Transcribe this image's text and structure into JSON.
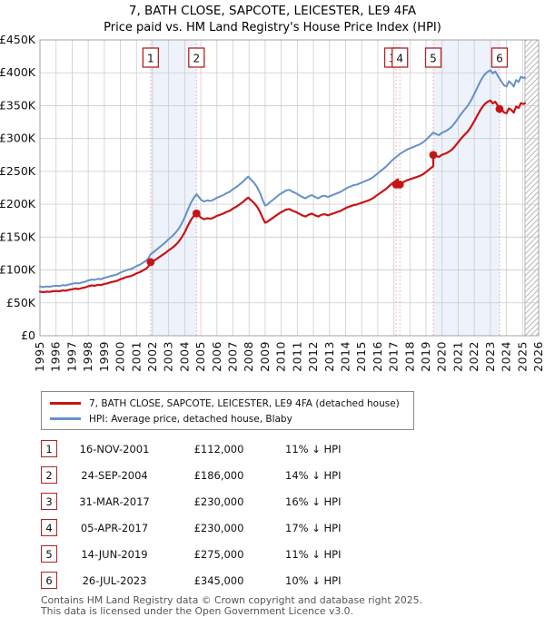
{
  "title": {
    "line1": "7, BATH CLOSE, SAPCOTE, LEICESTER, LE9 4FA",
    "line2": "Price paid vs. HM Land Registry's House Price Index (HPI)"
  },
  "colors": {
    "property_line": "#c81414",
    "hpi_line": "#6590c8",
    "dot": "#c81414",
    "marker_box_border": "#b22222",
    "dashed_line": "#f4a2a2",
    "band_fill": "#edf2fb",
    "grid": "#cccccc",
    "frame": "#a3a3a3",
    "hatch": "#b8b8b8",
    "tick_text": "#111111"
  },
  "legend": {
    "series1": "7, BATH CLOSE, SAPCOTE, LEICESTER, LE9 4FA (detached house)",
    "series2": "HPI: Average price, detached house, Blaby"
  },
  "chart_data": {
    "type": "line",
    "x_min": 1995,
    "x_max": 2026,
    "y_min": 0,
    "y_max": 450,
    "y_tick_step": 50,
    "y_unit": "£",
    "y_unit_suffix": "K",
    "grid": true,
    "legend_position": "below",
    "hatch_from": 2025.15,
    "bands": [
      [
        2001.88,
        2004.73
      ],
      [
        2019.45,
        2023.57
      ]
    ],
    "hpi_series_name": "HPI: Average price, detached house, Blaby",
    "hpi_points": [
      [
        1995.0,
        75
      ],
      [
        1995.2,
        74
      ],
      [
        1995.4,
        75
      ],
      [
        1995.6,
        74.5
      ],
      [
        1995.8,
        75.5
      ],
      [
        1996.0,
        76
      ],
      [
        1996.2,
        75.5
      ],
      [
        1996.4,
        77
      ],
      [
        1996.6,
        76.5
      ],
      [
        1996.8,
        78
      ],
      [
        1997.0,
        79
      ],
      [
        1997.2,
        80
      ],
      [
        1997.4,
        79.5
      ],
      [
        1997.6,
        81
      ],
      [
        1997.8,
        82
      ],
      [
        1998.0,
        84
      ],
      [
        1998.2,
        85.5
      ],
      [
        1998.4,
        85
      ],
      [
        1998.6,
        86.5
      ],
      [
        1998.8,
        86
      ],
      [
        1999.0,
        88
      ],
      [
        1999.2,
        89
      ],
      [
        1999.4,
        91
      ],
      [
        1999.6,
        92
      ],
      [
        1999.8,
        93.5
      ],
      [
        2000.0,
        96
      ],
      [
        2000.2,
        98
      ],
      [
        2000.4,
        100
      ],
      [
        2000.6,
        101
      ],
      [
        2000.8,
        103
      ],
      [
        2001.0,
        106
      ],
      [
        2001.2,
        108
      ],
      [
        2001.4,
        111
      ],
      [
        2001.6,
        114
      ],
      [
        2001.75,
        118
      ],
      [
        2001.88,
        124
      ],
      [
        2002.0,
        126
      ],
      [
        2002.2,
        130
      ],
      [
        2002.4,
        134
      ],
      [
        2002.6,
        138
      ],
      [
        2002.8,
        142
      ],
      [
        2003.0,
        147
      ],
      [
        2003.2,
        151
      ],
      [
        2003.4,
        156
      ],
      [
        2003.6,
        162
      ],
      [
        2003.8,
        170
      ],
      [
        2004.0,
        180
      ],
      [
        2004.2,
        192
      ],
      [
        2004.4,
        203
      ],
      [
        2004.6,
        211
      ],
      [
        2004.73,
        215
      ],
      [
        2004.85,
        212
      ],
      [
        2005.0,
        207
      ],
      [
        2005.2,
        204
      ],
      [
        2005.4,
        206
      ],
      [
        2005.6,
        205
      ],
      [
        2005.8,
        207
      ],
      [
        2006.0,
        210
      ],
      [
        2006.2,
        212
      ],
      [
        2006.4,
        214
      ],
      [
        2006.6,
        217
      ],
      [
        2006.8,
        219
      ],
      [
        2007.0,
        223
      ],
      [
        2007.2,
        226
      ],
      [
        2007.4,
        230
      ],
      [
        2007.6,
        234
      ],
      [
        2007.8,
        239
      ],
      [
        2007.95,
        242
      ],
      [
        2008.1,
        238
      ],
      [
        2008.3,
        233
      ],
      [
        2008.5,
        226
      ],
      [
        2008.7,
        216
      ],
      [
        2008.85,
        206
      ],
      [
        2009.0,
        198
      ],
      [
        2009.15,
        200
      ],
      [
        2009.3,
        203
      ],
      [
        2009.5,
        207
      ],
      [
        2009.7,
        211
      ],
      [
        2009.9,
        215
      ],
      [
        2010.1,
        218
      ],
      [
        2010.3,
        221
      ],
      [
        2010.5,
        222
      ],
      [
        2010.7,
        219
      ],
      [
        2010.9,
        217
      ],
      [
        2011.1,
        214
      ],
      [
        2011.3,
        211
      ],
      [
        2011.5,
        209
      ],
      [
        2011.7,
        212
      ],
      [
        2011.9,
        214
      ],
      [
        2012.1,
        211
      ],
      [
        2012.3,
        209
      ],
      [
        2012.5,
        212
      ],
      [
        2012.7,
        213
      ],
      [
        2012.9,
        211
      ],
      [
        2013.1,
        213
      ],
      [
        2013.3,
        215
      ],
      [
        2013.5,
        217
      ],
      [
        2013.7,
        219
      ],
      [
        2013.9,
        222
      ],
      [
        2014.1,
        225
      ],
      [
        2014.3,
        227
      ],
      [
        2014.5,
        229
      ],
      [
        2014.7,
        230
      ],
      [
        2014.9,
        232
      ],
      [
        2015.1,
        234
      ],
      [
        2015.3,
        236
      ],
      [
        2015.5,
        238
      ],
      [
        2015.7,
        241
      ],
      [
        2015.9,
        245
      ],
      [
        2016.1,
        249
      ],
      [
        2016.3,
        253
      ],
      [
        2016.5,
        257
      ],
      [
        2016.7,
        262
      ],
      [
        2016.9,
        267
      ],
      [
        2017.1,
        271
      ],
      [
        2017.25,
        274
      ],
      [
        2017.4,
        277
      ],
      [
        2017.6,
        280
      ],
      [
        2017.8,
        283
      ],
      [
        2018.0,
        285
      ],
      [
        2018.2,
        287
      ],
      [
        2018.4,
        289
      ],
      [
        2018.6,
        291
      ],
      [
        2018.8,
        294
      ],
      [
        2019.0,
        298
      ],
      [
        2019.2,
        303
      ],
      [
        2019.45,
        309
      ],
      [
        2019.6,
        307
      ],
      [
        2019.8,
        305
      ],
      [
        2020.0,
        309
      ],
      [
        2020.2,
        311
      ],
      [
        2020.4,
        314
      ],
      [
        2020.6,
        318
      ],
      [
        2020.8,
        324
      ],
      [
        2021.0,
        331
      ],
      [
        2021.2,
        338
      ],
      [
        2021.4,
        344
      ],
      [
        2021.6,
        350
      ],
      [
        2021.8,
        358
      ],
      [
        2022.0,
        368
      ],
      [
        2022.2,
        378
      ],
      [
        2022.4,
        388
      ],
      [
        2022.6,
        396
      ],
      [
        2022.8,
        401
      ],
      [
        2023.0,
        404
      ],
      [
        2023.15,
        399
      ],
      [
        2023.3,
        402
      ],
      [
        2023.45,
        396
      ],
      [
        2023.57,
        391
      ],
      [
        2023.7,
        386
      ],
      [
        2023.85,
        381
      ],
      [
        2024.0,
        379
      ],
      [
        2024.15,
        387
      ],
      [
        2024.3,
        384
      ],
      [
        2024.45,
        379
      ],
      [
        2024.6,
        389
      ],
      [
        2024.75,
        386
      ],
      [
        2024.9,
        394
      ],
      [
        2025.05,
        392
      ],
      [
        2025.15,
        393
      ]
    ],
    "property_series_name": "7, BATH CLOSE, SAPCOTE, LEICESTER, LE9 4FA (detached house)",
    "property_ratio_segments": [
      {
        "from": 1995.0,
        "to": 2001.88,
        "start": 0.895,
        "end": 0.895
      },
      {
        "from": 2001.88,
        "to": 2004.73,
        "start": 0.895,
        "end": 0.868
      },
      {
        "from": 2004.73,
        "to": 2017.25,
        "start": 0.868,
        "end": 0.868
      },
      {
        "from": 2017.25,
        "to": 2019.45,
        "start": 0.835,
        "end": 0.835
      },
      {
        "from": 2019.45,
        "to": 2023.57,
        "start": 0.892,
        "end": 0.885
      },
      {
        "from": 2023.57,
        "to": 2025.15,
        "start": 0.89,
        "end": 0.9
      }
    ],
    "transactions": [
      {
        "num": "1",
        "date": "16-NOV-2001",
        "year": 2001.88,
        "price_k": 112,
        "price_label": "£112,000",
        "pct_label": "11% ↓ HPI",
        "line_dx": 0,
        "box_dx": 0
      },
      {
        "num": "2",
        "date": "24-SEP-2004",
        "year": 2004.73,
        "price_k": 186,
        "price_label": "£186,000",
        "pct_label": "14% ↓ HPI",
        "line_dx": 0,
        "box_dx": 0
      },
      {
        "num": "3",
        "date": "31-MAR-2017",
        "year": 2017.25,
        "price_k": 230,
        "price_label": "£230,000",
        "pct_label": "16% ↓ HPI",
        "line_dx": -2,
        "box_dx": -6
      },
      {
        "num": "4",
        "date": "05-APR-2017",
        "year": 2017.26,
        "price_k": 230,
        "price_label": "£230,000",
        "pct_label": "17% ↓ HPI",
        "line_dx": 2,
        "box_dx": 2
      },
      {
        "num": "5",
        "date": "14-JUN-2019",
        "year": 2019.45,
        "price_k": 275,
        "price_label": "£275,000",
        "pct_label": "11% ↓ HPI",
        "line_dx": 0,
        "box_dx": 0
      },
      {
        "num": "6",
        "date": "26-JUL-2023",
        "year": 2023.57,
        "price_k": 345,
        "price_label": "£345,000",
        "pct_label": "10% ↓ HPI",
        "line_dx": 0,
        "box_dx": 0
      }
    ]
  },
  "footer": {
    "line1": "Contains HM Land Registry data © Crown copyright and database right 2025.",
    "line2": "This data is licensed under the Open Government Licence v3.0."
  }
}
